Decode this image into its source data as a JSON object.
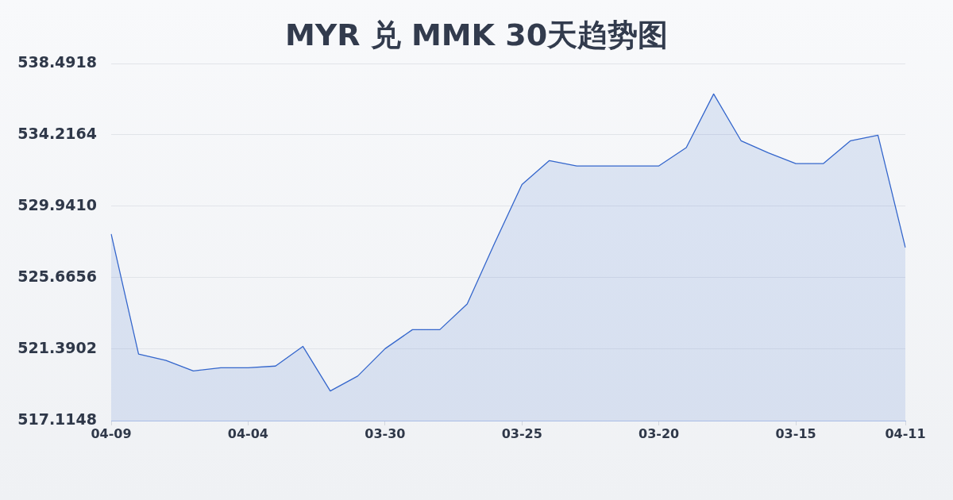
{
  "chart_data": {
    "type": "area",
    "title": "MYR 兑 MMK 30天趋势图",
    "categories": [
      "04-09",
      null,
      null,
      null,
      null,
      "04-04",
      null,
      null,
      null,
      null,
      "03-30",
      null,
      null,
      null,
      null,
      "03-25",
      null,
      null,
      null,
      null,
      "03-20",
      null,
      null,
      null,
      null,
      "03-15",
      null,
      null,
      null,
      "04-11"
    ],
    "values": [
      528.28,
      521.1,
      520.72,
      520.09,
      520.28,
      520.28,
      520.38,
      521.56,
      518.89,
      519.78,
      521.42,
      522.56,
      522.56,
      524.1,
      527.73,
      531.25,
      532.68,
      532.36,
      532.36,
      532.36,
      532.36,
      533.46,
      536.67,
      533.87,
      533.14,
      532.5,
      532.5,
      533.87,
      534.2,
      527.48
    ],
    "color": "#3466cc",
    "ylim": [
      517.1148,
      538.4918
    ],
    "yticks": [
      517.1148,
      521.3902,
      525.6656,
      {
        "value": 529.941,
        "label": "529.9410"
      },
      534.2164,
      538.4918
    ],
    "grid": "y"
  }
}
